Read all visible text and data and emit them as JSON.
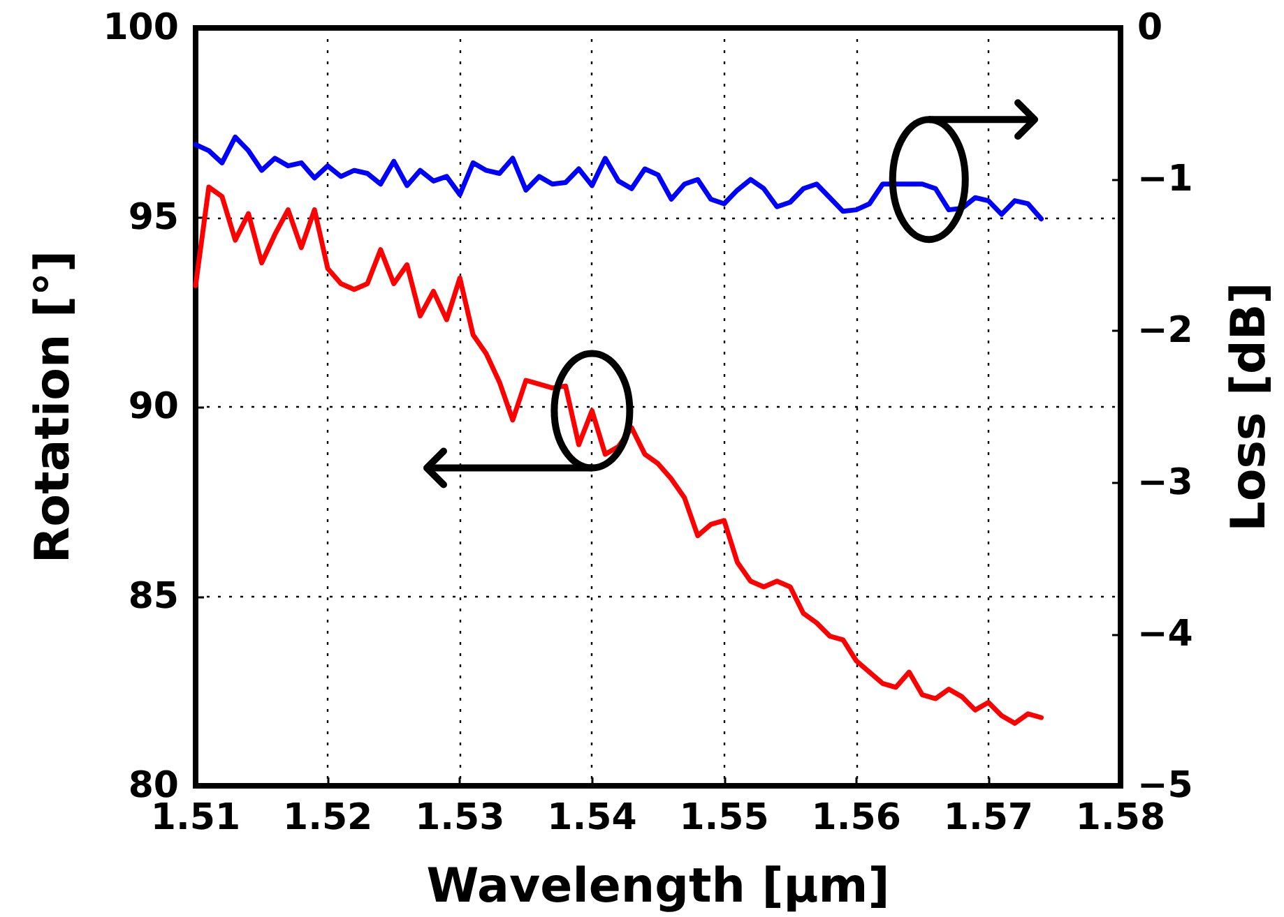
{
  "chart_data": {
    "type": "line",
    "xlabel": "Wavelength [µm]",
    "ylabel": "Rotation [°]",
    "y2label": "Loss [dB]",
    "x": [
      1.51,
      1.511,
      1.512,
      1.513,
      1.514,
      1.515,
      1.516,
      1.517,
      1.518,
      1.519,
      1.52,
      1.521,
      1.522,
      1.523,
      1.524,
      1.525,
      1.526,
      1.527,
      1.528,
      1.529,
      1.53,
      1.531,
      1.532,
      1.533,
      1.534,
      1.535,
      1.536,
      1.537,
      1.538,
      1.539,
      1.54,
      1.541,
      1.542,
      1.543,
      1.544,
      1.545,
      1.546,
      1.547,
      1.548,
      1.549,
      1.55,
      1.551,
      1.552,
      1.553,
      1.554,
      1.555,
      1.556,
      1.557,
      1.558,
      1.559,
      1.56,
      1.561,
      1.562,
      1.563,
      1.564,
      1.565,
      1.566,
      1.567,
      1.568,
      1.569,
      1.57,
      1.571,
      1.572,
      1.573,
      1.574
    ],
    "series": [
      {
        "color": "#ff0000",
        "values": [
          93.2,
          95.8,
          95.55,
          94.4,
          95.1,
          93.8,
          94.55,
          95.2,
          94.2,
          95.2,
          93.65,
          93.25,
          93.1,
          93.25,
          94.15,
          93.25,
          93.75,
          92.4,
          93.05,
          92.3,
          93.4,
          91.9,
          91.4,
          90.65,
          89.65,
          90.7,
          90.6,
          90.5,
          90.55,
          89.0,
          89.9,
          88.75,
          88.95,
          89.45,
          88.75,
          88.5,
          88.1,
          87.6,
          86.6,
          86.9,
          87.0,
          85.9,
          85.4,
          85.25,
          85.4,
          85.25,
          84.55,
          84.3,
          83.95,
          83.85,
          83.3,
          83.0,
          82.7,
          82.6,
          83.0,
          82.4,
          82.3,
          82.55,
          82.35,
          82.0,
          82.2,
          81.85,
          81.65,
          81.9,
          81.8
        ]
      },
      {
        "color": "#0000ff",
        "axis": "y2",
        "values": [
          -0.77,
          -0.81,
          -0.89,
          -0.72,
          -0.81,
          -0.94,
          -0.86,
          -0.91,
          -0.89,
          -0.99,
          -0.91,
          -0.98,
          -0.94,
          -0.96,
          -1.03,
          -0.88,
          -1.04,
          -0.94,
          -1.01,
          -0.98,
          -1.1,
          -0.89,
          -0.94,
          -0.96,
          -0.86,
          -1.07,
          -0.98,
          -1.03,
          -1.02,
          -0.93,
          -1.04,
          -0.86,
          -1.01,
          -1.06,
          -0.93,
          -0.97,
          -1.13,
          -1.03,
          -1.0,
          -1.13,
          -1.16,
          -1.07,
          -1.0,
          -1.06,
          -1.18,
          -1.15,
          -1.06,
          -1.03,
          -1.12,
          -1.21,
          -1.2,
          -1.16,
          -1.03,
          -1.03,
          -1.03,
          -1.03,
          -1.06,
          -1.2,
          -1.19,
          -1.12,
          -1.14,
          -1.23,
          -1.14,
          -1.16,
          -1.26
        ]
      }
    ],
    "xlim": [
      1.51,
      1.58
    ],
    "xticks": [
      1.51,
      1.52,
      1.53,
      1.54,
      1.55,
      1.56,
      1.57,
      1.58
    ],
    "ylim": [
      80,
      100
    ],
    "yticks": [
      80,
      85,
      90,
      95,
      100
    ],
    "y2lim": [
      -5,
      0
    ],
    "y2ticks": [
      {
        "value": -5,
        "label": "−5"
      },
      {
        "value": -4,
        "label": "−4"
      },
      {
        "value": -3,
        "label": "−3"
      },
      {
        "value": -2,
        "label": "−2"
      },
      {
        "value": -1,
        "label": "−1"
      },
      0
    ],
    "grid": true,
    "marker": "none",
    "line_style": "solid"
  }
}
